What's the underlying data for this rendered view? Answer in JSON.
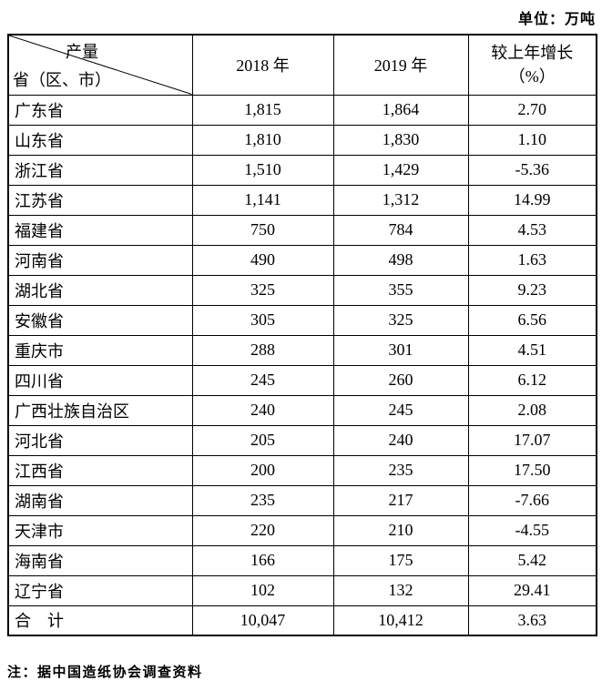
{
  "unit_label": "单位：万吨",
  "table": {
    "header": {
      "corner_top": "产量",
      "corner_bottom": "省（区、市）",
      "col_2018": "2018 年",
      "col_2019": "2019 年",
      "col_growth_line1": "较上年增长",
      "col_growth_line2": "（%）"
    },
    "rows": [
      {
        "province": "广东省",
        "y2018": "1,815",
        "y2019": "1,864",
        "growth": "2.70"
      },
      {
        "province": "山东省",
        "y2018": "1,810",
        "y2019": "1,830",
        "growth": "1.10"
      },
      {
        "province": "浙江省",
        "y2018": "1,510",
        "y2019": "1,429",
        "growth": "-5.36"
      },
      {
        "province": "江苏省",
        "y2018": "1,141",
        "y2019": "1,312",
        "growth": "14.99"
      },
      {
        "province": "福建省",
        "y2018": "750",
        "y2019": "784",
        "growth": "4.53"
      },
      {
        "province": "河南省",
        "y2018": "490",
        "y2019": "498",
        "growth": "1.63"
      },
      {
        "province": "湖北省",
        "y2018": "325",
        "y2019": "355",
        "growth": "9.23"
      },
      {
        "province": "安徽省",
        "y2018": "305",
        "y2019": "325",
        "growth": "6.56"
      },
      {
        "province": "重庆市",
        "y2018": "288",
        "y2019": "301",
        "growth": "4.51"
      },
      {
        "province": "四川省",
        "y2018": "245",
        "y2019": "260",
        "growth": "6.12"
      },
      {
        "province": "广西壮族自治区",
        "y2018": "240",
        "y2019": "245",
        "growth": "2.08"
      },
      {
        "province": "河北省",
        "y2018": "205",
        "y2019": "240",
        "growth": "17.07"
      },
      {
        "province": "江西省",
        "y2018": "200",
        "y2019": "235",
        "growth": "17.50"
      },
      {
        "province": "湖南省",
        "y2018": "235",
        "y2019": "217",
        "growth": "-7.66"
      },
      {
        "province": "天津市",
        "y2018": "220",
        "y2019": "210",
        "growth": "-4.55"
      },
      {
        "province": "海南省",
        "y2018": "166",
        "y2019": "175",
        "growth": "5.42"
      },
      {
        "province": "辽宁省",
        "y2018": "102",
        "y2019": "132",
        "growth": "29.41"
      },
      {
        "province": "合　计",
        "y2018": "10,047",
        "y2019": "10,412",
        "growth": "3.63"
      }
    ]
  },
  "note": "注：据中国造纸协会调查资料"
}
